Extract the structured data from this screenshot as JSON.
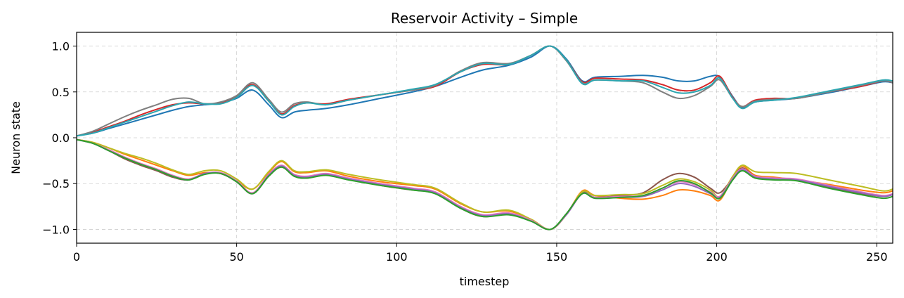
{
  "chart_data": {
    "type": "line",
    "title": "Reservoir Activity – Simple",
    "xlabel": "timestep",
    "ylabel": "Neuron state",
    "xlim": [
      0,
      255
    ],
    "ylim": [
      -1.15,
      1.15
    ],
    "grid": true,
    "legend": "none",
    "xticks": [
      0,
      50,
      100,
      150,
      200,
      250
    ],
    "xtick_labels": [
      "0",
      "50",
      "100",
      "150",
      "200",
      "250"
    ],
    "yticks": [
      -1.0,
      -0.5,
      0.0,
      0.5,
      1.0
    ],
    "ytick_labels": [
      "−1.0",
      "−0.5",
      "0.0",
      "0.5",
      "1.0"
    ],
    "x": [
      0,
      5,
      10,
      15,
      20,
      25,
      30,
      35,
      40,
      45,
      50,
      55,
      60,
      64,
      68,
      72,
      78,
      85,
      95,
      105,
      112,
      120,
      127,
      135,
      142,
      148,
      153,
      158,
      162,
      170,
      177,
      183,
      188,
      193,
      198,
      201,
      205,
      208,
      212,
      218,
      225,
      235,
      245,
      252,
      255
    ],
    "series": [
      {
        "color": "#1f77b4",
        "values": [
          0.02,
          0.05,
          0.1,
          0.15,
          0.2,
          0.25,
          0.3,
          0.34,
          0.36,
          0.38,
          0.43,
          0.52,
          0.36,
          0.22,
          0.28,
          0.3,
          0.32,
          0.36,
          0.43,
          0.5,
          0.56,
          0.66,
          0.74,
          0.79,
          0.88,
          1.0,
          0.86,
          0.62,
          0.66,
          0.67,
          0.68,
          0.66,
          0.62,
          0.62,
          0.67,
          0.66,
          0.45,
          0.33,
          0.39,
          0.41,
          0.43,
          0.49,
          0.56,
          0.61,
          0.6
        ]
      },
      {
        "color": "#d62728",
        "values": [
          0.02,
          0.06,
          0.12,
          0.18,
          0.25,
          0.31,
          0.36,
          0.38,
          0.37,
          0.38,
          0.45,
          0.58,
          0.4,
          0.26,
          0.35,
          0.38,
          0.37,
          0.42,
          0.47,
          0.52,
          0.56,
          0.72,
          0.8,
          0.8,
          0.9,
          1.0,
          0.85,
          0.61,
          0.65,
          0.64,
          0.63,
          0.58,
          0.52,
          0.52,
          0.6,
          0.67,
          0.44,
          0.34,
          0.41,
          0.43,
          0.43,
          0.5,
          0.56,
          0.62,
          0.6
        ]
      },
      {
        "color": "#7f7f7f",
        "values": [
          0.02,
          0.07,
          0.15,
          0.23,
          0.3,
          0.36,
          0.42,
          0.43,
          0.37,
          0.39,
          0.46,
          0.6,
          0.42,
          0.28,
          0.37,
          0.39,
          0.36,
          0.41,
          0.47,
          0.52,
          0.57,
          0.73,
          0.82,
          0.81,
          0.9,
          1.0,
          0.84,
          0.6,
          0.63,
          0.62,
          0.6,
          0.5,
          0.43,
          0.46,
          0.56,
          0.63,
          0.43,
          0.34,
          0.4,
          0.42,
          0.43,
          0.5,
          0.57,
          0.62,
          0.6
        ]
      },
      {
        "color": "#2ca6b0",
        "values": [
          0.02,
          0.05,
          0.11,
          0.17,
          0.23,
          0.29,
          0.35,
          0.39,
          0.37,
          0.37,
          0.44,
          0.57,
          0.4,
          0.25,
          0.34,
          0.38,
          0.36,
          0.41,
          0.47,
          0.53,
          0.58,
          0.72,
          0.81,
          0.8,
          0.9,
          1.0,
          0.85,
          0.59,
          0.63,
          0.62,
          0.62,
          0.55,
          0.49,
          0.5,
          0.57,
          0.65,
          0.43,
          0.32,
          0.39,
          0.41,
          0.44,
          0.51,
          0.58,
          0.63,
          0.62
        ]
      },
      {
        "color": "#ff7f0e",
        "values": [
          -0.02,
          -0.05,
          -0.11,
          -0.18,
          -0.24,
          -0.3,
          -0.36,
          -0.41,
          -0.38,
          -0.39,
          -0.47,
          -0.56,
          -0.38,
          -0.26,
          -0.37,
          -0.38,
          -0.36,
          -0.42,
          -0.48,
          -0.52,
          -0.56,
          -0.72,
          -0.81,
          -0.8,
          -0.89,
          -1.0,
          -0.84,
          -0.58,
          -0.63,
          -0.66,
          -0.67,
          -0.63,
          -0.57,
          -0.58,
          -0.63,
          -0.68,
          -0.44,
          -0.31,
          -0.41,
          -0.43,
          -0.46,
          -0.51,
          -0.57,
          -0.6,
          -0.58
        ]
      },
      {
        "color": "#8c564b",
        "values": [
          -0.02,
          -0.06,
          -0.14,
          -0.23,
          -0.3,
          -0.36,
          -0.43,
          -0.46,
          -0.39,
          -0.39,
          -0.48,
          -0.61,
          -0.42,
          -0.32,
          -0.42,
          -0.44,
          -0.4,
          -0.45,
          -0.52,
          -0.57,
          -0.6,
          -0.77,
          -0.86,
          -0.83,
          -0.91,
          -1.0,
          -0.83,
          -0.6,
          -0.65,
          -0.63,
          -0.6,
          -0.46,
          -0.39,
          -0.43,
          -0.55,
          -0.6,
          -0.44,
          -0.33,
          -0.42,
          -0.44,
          -0.46,
          -0.54,
          -0.61,
          -0.64,
          -0.62
        ]
      },
      {
        "color": "#bcbd22",
        "values": [
          -0.02,
          -0.05,
          -0.11,
          -0.17,
          -0.22,
          -0.28,
          -0.35,
          -0.4,
          -0.36,
          -0.36,
          -0.45,
          -0.56,
          -0.37,
          -0.25,
          -0.36,
          -0.37,
          -0.35,
          -0.4,
          -0.46,
          -0.51,
          -0.55,
          -0.71,
          -0.81,
          -0.79,
          -0.89,
          -1.0,
          -0.84,
          -0.59,
          -0.63,
          -0.62,
          -0.61,
          -0.52,
          -0.45,
          -0.48,
          -0.57,
          -0.64,
          -0.42,
          -0.3,
          -0.37,
          -0.38,
          -0.39,
          -0.46,
          -0.53,
          -0.58,
          -0.56
        ]
      },
      {
        "color": "#e377c2",
        "values": [
          -0.02,
          -0.06,
          -0.13,
          -0.21,
          -0.28,
          -0.34,
          -0.41,
          -0.45,
          -0.39,
          -0.38,
          -0.47,
          -0.6,
          -0.4,
          -0.3,
          -0.4,
          -0.42,
          -0.39,
          -0.44,
          -0.5,
          -0.55,
          -0.59,
          -0.75,
          -0.84,
          -0.82,
          -0.9,
          -1.0,
          -0.84,
          -0.61,
          -0.65,
          -0.64,
          -0.63,
          -0.55,
          -0.48,
          -0.51,
          -0.59,
          -0.64,
          -0.44,
          -0.34,
          -0.42,
          -0.44,
          -0.45,
          -0.52,
          -0.59,
          -0.63,
          -0.61
        ]
      },
      {
        "color": "#9467bd",
        "values": [
          -0.02,
          -0.06,
          -0.14,
          -0.22,
          -0.29,
          -0.35,
          -0.42,
          -0.46,
          -0.39,
          -0.39,
          -0.48,
          -0.61,
          -0.41,
          -0.31,
          -0.41,
          -0.43,
          -0.4,
          -0.45,
          -0.51,
          -0.56,
          -0.6,
          -0.76,
          -0.85,
          -0.83,
          -0.91,
          -1.0,
          -0.84,
          -0.61,
          -0.66,
          -0.65,
          -0.64,
          -0.57,
          -0.5,
          -0.53,
          -0.61,
          -0.65,
          -0.45,
          -0.35,
          -0.43,
          -0.45,
          -0.46,
          -0.53,
          -0.6,
          -0.64,
          -0.62
        ]
      },
      {
        "color": "#2ca02c",
        "values": [
          -0.02,
          -0.06,
          -0.14,
          -0.22,
          -0.29,
          -0.35,
          -0.42,
          -0.46,
          -0.4,
          -0.39,
          -0.48,
          -0.61,
          -0.42,
          -0.32,
          -0.42,
          -0.44,
          -0.41,
          -0.46,
          -0.52,
          -0.57,
          -0.61,
          -0.77,
          -0.86,
          -0.84,
          -0.91,
          -1.0,
          -0.83,
          -0.61,
          -0.66,
          -0.65,
          -0.63,
          -0.55,
          -0.47,
          -0.5,
          -0.6,
          -0.66,
          -0.46,
          -0.36,
          -0.44,
          -0.46,
          -0.47,
          -0.55,
          -0.62,
          -0.66,
          -0.64
        ]
      }
    ]
  }
}
